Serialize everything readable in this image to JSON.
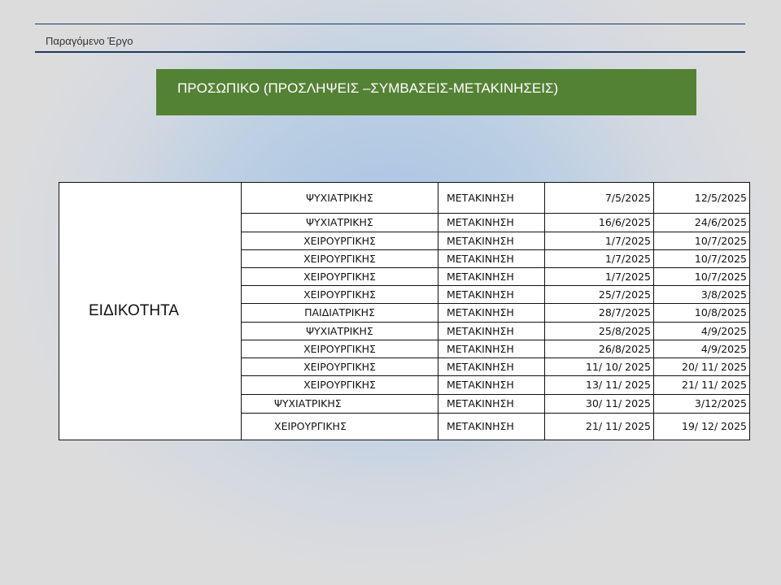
{
  "header": {
    "subtitle": "Παραγόμενο Έργο"
  },
  "banner": {
    "title": "ΠΡΟΣΩΠΙΚΟ (ΠΡΟΣΛΗΨΕΙΣ –ΣΥΜΒΑΣΕΙΣ-ΜΕΤΑΚΙΝΗΣΕΙΣ)",
    "color": "#548235"
  },
  "table": {
    "label": "ΕΙΔΙΚΟΤΗΤΑ",
    "rows": [
      [
        "ΨΥΧΙΑΤΡΙΚΗΣ",
        "ΜΕΤΑΚΙΝΗΣΗ",
        "7/5/2025",
        "12/5/2025"
      ],
      [
        "ΨΥΧΙΑΤΡΙΚΗΣ",
        "ΜΕΤΑΚΙΝΗΣΗ",
        "16/6/2025",
        "24/6/2025"
      ],
      [
        "ΧΕΙΡΟΥΡΓΙΚΗΣ",
        "ΜΕΤΑΚΙΝΗΣΗ",
        "1/7/2025",
        "10/7/2025"
      ],
      [
        "ΧΕΙΡΟΥΡΓΙΚΗΣ",
        "ΜΕΤΑΚΙΝΗΣΗ",
        "1/7/2025",
        "10/7/2025"
      ],
      [
        "ΧΕΙΡΟΥΡΓΙΚΗΣ",
        "ΜΕΤΑΚΙΝΗΣΗ",
        "1/7/2025",
        "10/7/2025"
      ],
      [
        "ΧΕΙΡΟΥΡΓΙΚΗΣ",
        "ΜΕΤΑΚΙΝΗΣΗ",
        "25/7/2025",
        "3/8/2025"
      ],
      [
        "ΠΑΙΔΙΑΤΡΙΚΗΣ",
        "ΜΕΤΑΚΙΝΗΣΗ",
        "28/7/2025",
        "10/8/2025"
      ],
      [
        "ΨΥΧΙΑΤΡΙΚΗΣ",
        "ΜΕΤΑΚΙΝΗΣΗ",
        "25/8/2025",
        "4/9/2025"
      ],
      [
        "ΧΕΙΡΟΥΡΓΙΚΗΣ",
        "ΜΕΤΑΚΙΝΗΣΗ",
        "26/8/2025",
        "4/9/2025"
      ],
      [
        "ΧΕΙΡΟΥΡΓΙΚΗΣ",
        "ΜΕΤΑΚΙΝΗΣΗ",
        "11/ 10/ 2025",
        "20/ 11/ 2025"
      ],
      [
        "ΧΕΙΡΟΥΡΓΙΚΗΣ",
        "ΜΕΤΑΚΙΝΗΣΗ",
        "13/ 11/ 2025",
        "21/ 11/ 2025"
      ],
      [
        "ΨΥΧΙΑΤΡΙΚΗΣ",
        "ΜΕΤΑΚΙΝΗΣΗ",
        "30/ 11/ 2025",
        "3/12/2025"
      ],
      [
        "ΧΕΙΡΟΥΡΓΙΚΗΣ",
        "ΜΕΤΑΚΙΝΗΣΗ",
        "21/ 11/ 2025",
        "19/ 12/ 2025"
      ]
    ]
  }
}
